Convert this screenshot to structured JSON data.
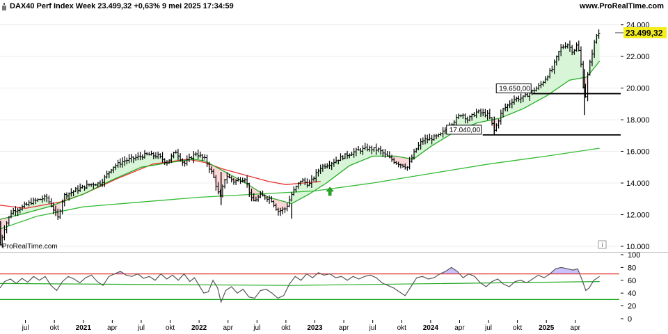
{
  "header": {
    "title": "DAX40 Perf Index Week 23.499,32 +0,63% 9 mei 2025 17:34:59",
    "site": "www.ProRealTime.com"
  },
  "watermark": "ProRealTime.com",
  "info_icon": "i",
  "colors": {
    "price": "#000000",
    "ma_fast": "#22aa22",
    "ma_mid": "#e83030",
    "ma_slow": "#33bb33",
    "fill_bull": "#d8f5d8",
    "fill_bear": "#fbd6d6",
    "last_label_bg": "#f5ee1e",
    "osc": "#555555",
    "osc_upper": "#e03030",
    "osc_lower": "#22aa22",
    "osc_overbought_fill": "#c9c2ff",
    "arrow": "#22aa22"
  },
  "chart_data": [
    {
      "type": "ohlc",
      "name": "DAX40 Perf Index Week",
      "last_value": "23.499,32",
      "y_ticks": [
        "24.000",
        "22.000",
        "20.000",
        "18.000",
        "16.000",
        "14.000",
        "12.000",
        "10.000"
      ],
      "ylim": [
        10000,
        24600
      ],
      "levels": [
        {
          "value": 19650,
          "label": "19.650,00"
        },
        {
          "value": 17040,
          "label": "17.040,00"
        }
      ],
      "signal_arrow": {
        "x": 2023.13,
        "direction": "up"
      },
      "x_ticks": [
        {
          "x": 2020.5,
          "label": "jul"
        },
        {
          "x": 2020.75,
          "label": "okt"
        },
        {
          "x": 2021.0,
          "label": "2021",
          "bold": true
        },
        {
          "x": 2021.25,
          "label": "apr"
        },
        {
          "x": 2021.5,
          "label": "jul"
        },
        {
          "x": 2021.75,
          "label": "okt"
        },
        {
          "x": 2022.0,
          "label": "2022",
          "bold": true
        },
        {
          "x": 2022.25,
          "label": "apr"
        },
        {
          "x": 2022.5,
          "label": "jul"
        },
        {
          "x": 2022.75,
          "label": "okt"
        },
        {
          "x": 2023.0,
          "label": "2023",
          "bold": true
        },
        {
          "x": 2023.25,
          "label": "apr"
        },
        {
          "x": 2023.5,
          "label": "jul"
        },
        {
          "x": 2023.75,
          "label": "okt"
        },
        {
          "x": 2024.0,
          "label": "2024",
          "bold": true
        },
        {
          "x": 2024.25,
          "label": "apr"
        },
        {
          "x": 2024.5,
          "label": "jul"
        },
        {
          "x": 2024.75,
          "label": "okt"
        },
        {
          "x": 2025.0,
          "label": "2025",
          "bold": true
        },
        {
          "x": 2025.25,
          "label": "apr"
        }
      ],
      "xlim": [
        2020.28,
        2025.63
      ],
      "close_path": [
        [
          2020.28,
          10100
        ],
        [
          2020.32,
          11200
        ],
        [
          2020.38,
          12200
        ],
        [
          2020.45,
          12400
        ],
        [
          2020.55,
          12800
        ],
        [
          2020.68,
          13100
        ],
        [
          2020.73,
          12500
        ],
        [
          2020.78,
          11800
        ],
        [
          2020.83,
          13200
        ],
        [
          2020.95,
          13600
        ],
        [
          2021.05,
          13900
        ],
        [
          2021.15,
          14000
        ],
        [
          2021.25,
          15000
        ],
        [
          2021.35,
          15400
        ],
        [
          2021.45,
          15600
        ],
        [
          2021.55,
          15800
        ],
        [
          2021.65,
          15700
        ],
        [
          2021.72,
          15300
        ],
        [
          2021.8,
          16000
        ],
        [
          2021.87,
          15200
        ],
        [
          2021.97,
          15900
        ],
        [
          2022.05,
          15500
        ],
        [
          2022.12,
          14500
        ],
        [
          2022.18,
          13000
        ],
        [
          2022.23,
          14500
        ],
        [
          2022.3,
          14100
        ],
        [
          2022.4,
          14300
        ],
        [
          2022.46,
          12800
        ],
        [
          2022.53,
          13200
        ],
        [
          2022.62,
          13000
        ],
        [
          2022.68,
          12200
        ],
        [
          2022.75,
          12400
        ],
        [
          2022.8,
          13300
        ],
        [
          2022.88,
          14200
        ],
        [
          2022.95,
          13900
        ],
        [
          2023.05,
          15000
        ],
        [
          2023.15,
          15300
        ],
        [
          2023.25,
          15700
        ],
        [
          2023.35,
          16000
        ],
        [
          2023.45,
          16200
        ],
        [
          2023.55,
          16100
        ],
        [
          2023.62,
          15700
        ],
        [
          2023.7,
          15300
        ],
        [
          2023.8,
          15000
        ],
        [
          2023.87,
          16100
        ],
        [
          2023.93,
          16700
        ],
        [
          2024.0,
          16800
        ],
        [
          2024.08,
          17000
        ],
        [
          2024.17,
          17700
        ],
        [
          2024.27,
          18400
        ],
        [
          2024.32,
          18000
        ],
        [
          2024.4,
          18500
        ],
        [
          2024.5,
          18300
        ],
        [
          2024.55,
          17300
        ],
        [
          2024.62,
          18600
        ],
        [
          2024.72,
          19300
        ],
        [
          2024.8,
          19400
        ],
        [
          2024.88,
          19800
        ],
        [
          2024.95,
          20200
        ],
        [
          2025.05,
          21200
        ],
        [
          2025.12,
          22500
        ],
        [
          2025.18,
          22800
        ],
        [
          2025.23,
          22300
        ],
        [
          2025.27,
          22800
        ],
        [
          2025.31,
          21000
        ],
        [
          2025.33,
          19000
        ],
        [
          2025.36,
          21000
        ],
        [
          2025.4,
          22400
        ],
        [
          2025.43,
          23300
        ],
        [
          2025.46,
          23499
        ]
      ],
      "ma_fast_path": [
        [
          2020.28,
          11700
        ],
        [
          2020.45,
          12000
        ],
        [
          2020.7,
          12500
        ],
        [
          2021.0,
          13300
        ],
        [
          2021.25,
          14200
        ],
        [
          2021.5,
          15000
        ],
        [
          2021.75,
          15300
        ],
        [
          2021.95,
          15500
        ],
        [
          2022.05,
          15400
        ],
        [
          2022.2,
          14800
        ],
        [
          2022.4,
          14000
        ],
        [
          2022.6,
          13100
        ],
        [
          2022.8,
          12700
        ],
        [
          2022.95,
          13300
        ],
        [
          2023.1,
          14000
        ],
        [
          2023.3,
          15100
        ],
        [
          2023.5,
          15700
        ],
        [
          2023.7,
          15700
        ],
        [
          2023.85,
          15500
        ],
        [
          2024.0,
          16300
        ],
        [
          2024.2,
          17200
        ],
        [
          2024.4,
          17800
        ],
        [
          2024.6,
          18100
        ],
        [
          2024.8,
          18700
        ],
        [
          2025.0,
          19500
        ],
        [
          2025.2,
          20500
        ],
        [
          2025.35,
          20700
        ],
        [
          2025.46,
          21700
        ]
      ],
      "ma_mid_path": [
        [
          2020.28,
          12600
        ],
        [
          2020.5,
          12400
        ],
        [
          2020.8,
          12800
        ],
        [
          2021.0,
          13300
        ],
        [
          2021.3,
          14300
        ],
        [
          2021.6,
          15200
        ],
        [
          2021.9,
          15500
        ],
        [
          2022.05,
          15300
        ],
        [
          2022.2,
          14900
        ],
        [
          2022.4,
          14500
        ],
        [
          2022.6,
          14100
        ],
        [
          2022.75,
          13900
        ],
        [
          2022.9,
          14000
        ],
        [
          2023.05,
          14100
        ]
      ],
      "ma_slow_path": [
        [
          2020.28,
          11100
        ],
        [
          2020.6,
          11900
        ],
        [
          2021.0,
          12500
        ],
        [
          2021.5,
          12800
        ],
        [
          2022.0,
          13100
        ],
        [
          2022.5,
          13300
        ],
        [
          2023.0,
          13500
        ],
        [
          2023.5,
          14000
        ],
        [
          2024.0,
          14600
        ],
        [
          2024.5,
          15200
        ],
        [
          2025.0,
          15700
        ],
        [
          2025.46,
          16200
        ]
      ]
    },
    {
      "type": "line",
      "name": "oscillator",
      "y_ticks": [
        "100",
        "80",
        "60",
        "40",
        "20",
        "0"
      ],
      "ylim": [
        0,
        100
      ],
      "upper_level": 70,
      "lower_level": 30,
      "baseline_path": [
        [
          2020.28,
          55
        ],
        [
          2022.8,
          52
        ],
        [
          2025.46,
          58
        ]
      ],
      "values_path": [
        [
          2020.28,
          48
        ],
        [
          2020.32,
          58
        ],
        [
          2020.37,
          62
        ],
        [
          2020.42,
          55
        ],
        [
          2020.47,
          63
        ],
        [
          2020.52,
          57
        ],
        [
          2020.57,
          66
        ],
        [
          2020.62,
          60
        ],
        [
          2020.67,
          66
        ],
        [
          2020.72,
          52
        ],
        [
          2020.77,
          44
        ],
        [
          2020.82,
          58
        ],
        [
          2020.87,
          66
        ],
        [
          2020.92,
          62
        ],
        [
          2020.97,
          56
        ],
        [
          2021.02,
          64
        ],
        [
          2021.07,
          68
        ],
        [
          2021.12,
          58
        ],
        [
          2021.17,
          52
        ],
        [
          2021.22,
          66
        ],
        [
          2021.27,
          70
        ],
        [
          2021.32,
          74
        ],
        [
          2021.37,
          68
        ],
        [
          2021.42,
          66
        ],
        [
          2021.47,
          70
        ],
        [
          2021.52,
          63
        ],
        [
          2021.57,
          66
        ],
        [
          2021.62,
          60
        ],
        [
          2021.67,
          70
        ],
        [
          2021.72,
          62
        ],
        [
          2021.77,
          68
        ],
        [
          2021.82,
          60
        ],
        [
          2021.87,
          70
        ],
        [
          2021.92,
          58
        ],
        [
          2021.96,
          64
        ],
        [
          2022.0,
          52
        ],
        [
          2022.04,
          40
        ],
        [
          2022.08,
          42
        ],
        [
          2022.12,
          60
        ],
        [
          2022.16,
          48
        ],
        [
          2022.19,
          26
        ],
        [
          2022.23,
          44
        ],
        [
          2022.28,
          50
        ],
        [
          2022.33,
          40
        ],
        [
          2022.38,
          46
        ],
        [
          2022.43,
          34
        ],
        [
          2022.48,
          32
        ],
        [
          2022.53,
          44
        ],
        [
          2022.58,
          46
        ],
        [
          2022.63,
          40
        ],
        [
          2022.68,
          32
        ],
        [
          2022.73,
          36
        ],
        [
          2022.78,
          54
        ],
        [
          2022.83,
          66
        ],
        [
          2022.88,
          60
        ],
        [
          2022.93,
          70
        ],
        [
          2022.98,
          64
        ],
        [
          2023.03,
          72
        ],
        [
          2023.08,
          68
        ],
        [
          2023.13,
          70
        ],
        [
          2023.18,
          64
        ],
        [
          2023.23,
          66
        ],
        [
          2023.28,
          60
        ],
        [
          2023.33,
          66
        ],
        [
          2023.38,
          62
        ],
        [
          2023.43,
          66
        ],
        [
          2023.48,
          68
        ],
        [
          2023.53,
          64
        ],
        [
          2023.58,
          56
        ],
        [
          2023.63,
          52
        ],
        [
          2023.68,
          48
        ],
        [
          2023.73,
          42
        ],
        [
          2023.78,
          36
        ],
        [
          2023.83,
          50
        ],
        [
          2023.88,
          64
        ],
        [
          2023.93,
          66
        ],
        [
          2023.98,
          62
        ],
        [
          2024.03,
          64
        ],
        [
          2024.08,
          70
        ],
        [
          2024.13,
          74
        ],
        [
          2024.18,
          80
        ],
        [
          2024.23,
          74
        ],
        [
          2024.28,
          64
        ],
        [
          2024.33,
          70
        ],
        [
          2024.38,
          66
        ],
        [
          2024.43,
          56
        ],
        [
          2024.48,
          50
        ],
        [
          2024.53,
          58
        ],
        [
          2024.58,
          62
        ],
        [
          2024.63,
          54
        ],
        [
          2024.68,
          50
        ],
        [
          2024.73,
          58
        ],
        [
          2024.78,
          60
        ],
        [
          2024.83,
          56
        ],
        [
          2024.88,
          62
        ],
        [
          2024.93,
          68
        ],
        [
          2024.98,
          64
        ],
        [
          2025.03,
          70
        ],
        [
          2025.08,
          78
        ],
        [
          2025.13,
          80
        ],
        [
          2025.18,
          78
        ],
        [
          2025.23,
          76
        ],
        [
          2025.27,
          78
        ],
        [
          2025.31,
          60
        ],
        [
          2025.34,
          44
        ],
        [
          2025.37,
          48
        ],
        [
          2025.41,
          60
        ],
        [
          2025.46,
          66
        ]
      ]
    }
  ]
}
